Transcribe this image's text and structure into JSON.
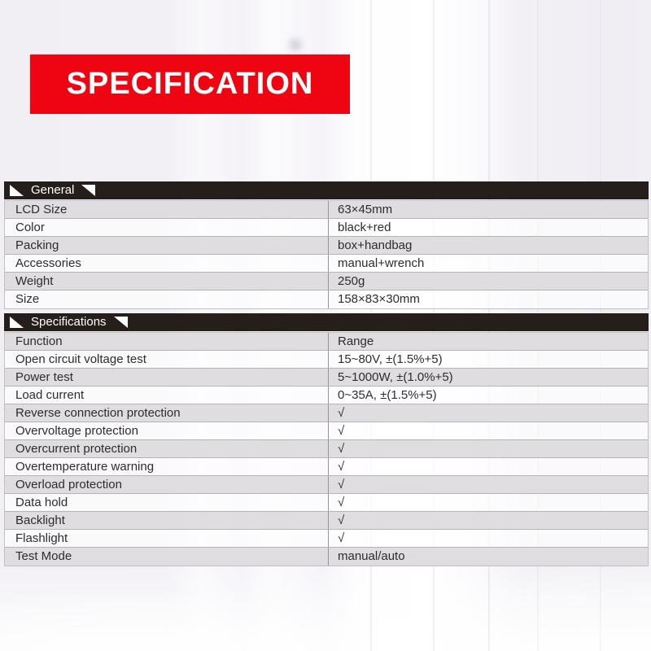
{
  "banner": {
    "title": "SPECIFICATION"
  },
  "colors": {
    "banner_red": "#ee0511",
    "section_bar_dark": "#251e1b",
    "gray_row": "#dfdde0",
    "text_dark": "#2e2c2e",
    "triangle_white": "#ffffff"
  },
  "sections": [
    {
      "title": "General",
      "rows": [
        {
          "label": "LCD Size",
          "value": "63×45mm"
        },
        {
          "label": "Color",
          "value": "black+red"
        },
        {
          "label": "Packing",
          "value": "box+handbag"
        },
        {
          "label": "Accessories",
          "value": "manual+wrench"
        },
        {
          "label": "Weight",
          "value": "250g"
        },
        {
          "label": "Size",
          "value": "158×83×30mm"
        }
      ]
    },
    {
      "title": "Specifications",
      "rows": [
        {
          "label": "Function",
          "value": "Range"
        },
        {
          "label": "Open circuit voltage test",
          "value": "15~80V, ±(1.5%+5)"
        },
        {
          "label": "Power test",
          "value": "5~1000W, ±(1.0%+5)"
        },
        {
          "label": "Load current",
          "value": "0~35A, ±(1.5%+5)"
        },
        {
          "label": "Reverse connection protection",
          "value": "√"
        },
        {
          "label": "Overvoltage protection",
          "value": "√"
        },
        {
          "label": "Overcurrent protection",
          "value": "√"
        },
        {
          "label": "Overtemperature warning",
          "value": "√"
        },
        {
          "label": "Overload protection",
          "value": "√"
        },
        {
          "label": "Data hold",
          "value": "√"
        },
        {
          "label": "Backlight",
          "value": "√"
        },
        {
          "label": "Flashlight",
          "value": "√"
        },
        {
          "label": "Test Mode",
          "value": "manual/auto"
        }
      ]
    }
  ]
}
